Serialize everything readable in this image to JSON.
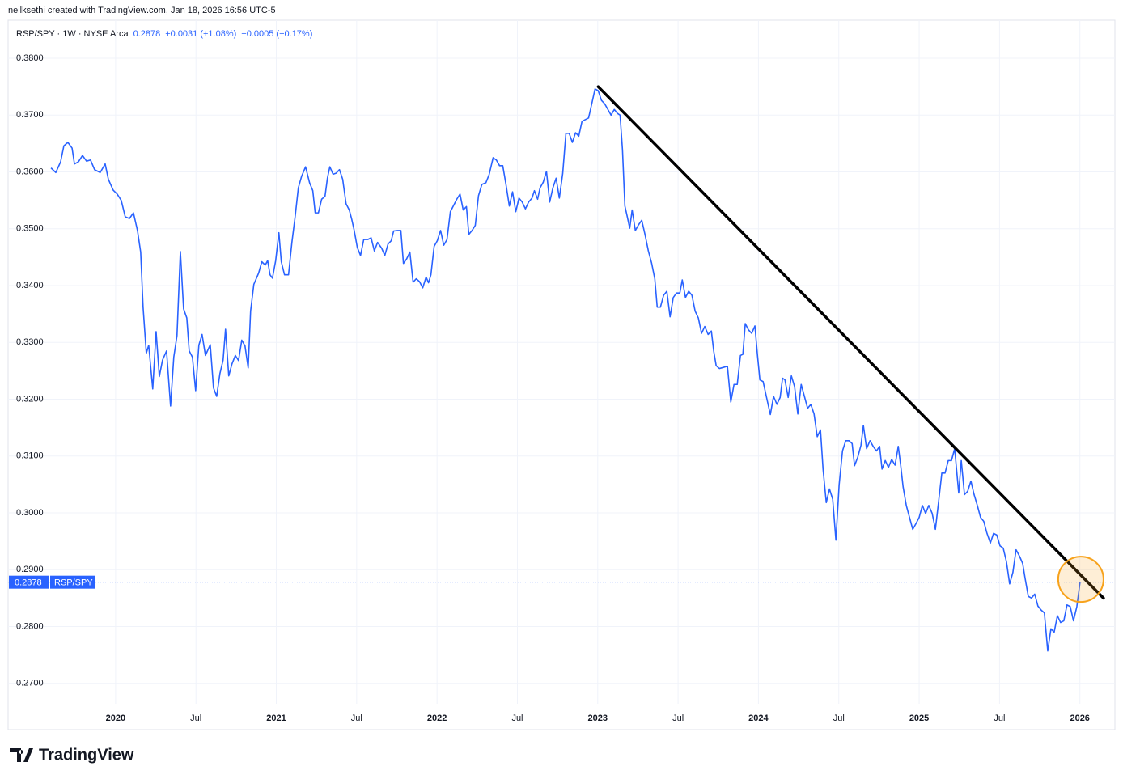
{
  "header": {
    "credit": "neilksethi created with TradingView.com, Jan 18, 2026 16:56 UTC-5"
  },
  "footer": {
    "brand": "TradingView"
  },
  "chart_data": {
    "type": "line",
    "legend": {
      "symbol": "RSP/SPY · 1W · NYSE Arca",
      "price": "0.2878",
      "change": "+0.0031 (+1.08%)",
      "change_extended": "−0.0005 (−0.17%)"
    },
    "x": [
      2019.598,
      2019.628,
      2019.658,
      2019.678,
      2019.703,
      2019.729,
      2019.744,
      2019.769,
      2019.794,
      2019.819,
      2019.844,
      2019.869,
      2019.904,
      2019.935,
      2019.955,
      2019.985,
      2020.01,
      2020.035,
      2020.06,
      2020.086,
      2020.111,
      2020.136,
      2020.156,
      2020.171,
      2020.191,
      2020.206,
      2020.231,
      2020.252,
      2020.272,
      2020.292,
      2020.317,
      2020.342,
      2020.362,
      2020.382,
      2020.403,
      2020.423,
      2020.443,
      2020.458,
      2020.478,
      2020.498,
      2020.518,
      2020.538,
      2020.559,
      2020.589,
      2020.609,
      2020.629,
      2020.649,
      2020.669,
      2020.684,
      2020.704,
      2020.724,
      2020.745,
      2020.765,
      2020.785,
      2020.805,
      2020.825,
      2020.84,
      2020.86,
      2020.89,
      2020.91,
      2020.931,
      2020.946,
      2020.961,
      2020.976,
      2020.996,
      2021.016,
      2021.031,
      2021.051,
      2021.076,
      2021.097,
      2021.117,
      2021.137,
      2021.157,
      2021.182,
      2021.207,
      2021.227,
      2021.242,
      2021.262,
      2021.282,
      2021.303,
      2021.318,
      2021.333,
      2021.353,
      2021.373,
      2021.393,
      2021.413,
      2021.434,
      2021.454,
      2021.469,
      2021.484,
      2021.504,
      2021.524,
      2021.544,
      2021.569,
      2021.59,
      2021.61,
      2021.63,
      2021.655,
      2021.675,
      2021.695,
      2021.715,
      2021.73,
      2021.755,
      2021.775,
      2021.791,
      2021.811,
      2021.831,
      2021.851,
      2021.871,
      2021.891,
      2021.911,
      2021.932,
      2021.947,
      2021.962,
      2021.982,
      2022.002,
      2022.022,
      2022.042,
      2022.062,
      2022.083,
      2022.103,
      2022.123,
      2022.143,
      2022.163,
      2022.183,
      2022.198,
      2022.218,
      2022.238,
      2022.258,
      2022.279,
      2022.304,
      2022.324,
      2022.349,
      2022.369,
      2022.389,
      2022.409,
      2022.429,
      2022.45,
      2022.47,
      2022.49,
      2022.51,
      2022.53,
      2022.55,
      2022.57,
      2022.591,
      2022.606,
      2022.626,
      2022.641,
      2022.661,
      2022.681,
      2022.701,
      2022.721,
      2022.741,
      2022.761,
      2022.782,
      2022.802,
      2022.822,
      2022.842,
      2022.862,
      2022.882,
      2022.902,
      2022.922,
      2022.943,
      2022.963,
      2022.983,
      2023.003,
      2023.023,
      2023.043,
      2023.063,
      2023.083,
      2023.103,
      2023.123,
      2023.139,
      2023.154,
      2023.169,
      2023.184,
      2023.199,
      2023.214,
      2023.234,
      2023.254,
      2023.274,
      2023.294,
      2023.315,
      2023.335,
      2023.355,
      2023.37,
      2023.39,
      2023.41,
      2023.43,
      2023.45,
      2023.47,
      2023.49,
      2023.511,
      2023.526,
      2023.546,
      2023.566,
      2023.586,
      2023.606,
      2023.626,
      2023.646,
      2023.666,
      2023.687,
      2023.707,
      2023.722,
      2023.737,
      2023.757,
      2023.782,
      2023.807,
      2023.828,
      2023.848,
      2023.868,
      2023.888,
      2023.903,
      2023.918,
      2023.938,
      2023.958,
      2023.978,
      2023.994,
      2024.009,
      2024.029,
      2024.049,
      2024.074,
      2024.094,
      2024.115,
      2024.135,
      2024.15,
      2024.165,
      2024.185,
      2024.205,
      2024.225,
      2024.245,
      2024.266,
      2024.286,
      2024.306,
      2024.326,
      2024.346,
      2024.366,
      2024.386,
      2024.402,
      2024.422,
      2024.442,
      2024.462,
      2024.482,
      2024.502,
      2024.523,
      2024.543,
      2024.563,
      2024.583,
      2024.598,
      2024.618,
      2024.638,
      2024.653,
      2024.673,
      2024.694,
      2024.714,
      2024.734,
      2024.754,
      2024.769,
      2024.789,
      2024.809,
      2024.829,
      2024.85,
      2024.87,
      2024.885,
      2024.9,
      2024.92,
      2024.94,
      2024.96,
      2024.98,
      2025.0,
      2025.02,
      2025.04,
      2025.06,
      2025.081,
      2025.101,
      2025.121,
      2025.141,
      2025.161,
      2025.181,
      2025.201,
      2025.221,
      2025.246,
      2025.262,
      2025.282,
      2025.302,
      2025.322,
      2025.342,
      2025.362,
      2025.382,
      2025.402,
      2025.422,
      2025.443,
      2025.463,
      2025.483,
      2025.503,
      2025.523,
      2025.543,
      2025.563,
      2025.583,
      2025.603,
      2025.624,
      2025.644,
      2025.659,
      2025.679,
      2025.699,
      2025.719,
      2025.739,
      2025.759,
      2025.779,
      2025.8,
      2025.82,
      2025.84,
      2025.86,
      2025.88,
      2025.9,
      2025.92,
      2025.94,
      2025.96,
      2025.981,
      2026.001
    ],
    "series": [
      {
        "name": "RSP/SPY",
        "color": "#2962ff",
        "values": [
          0.3607,
          0.3599,
          0.3618,
          0.3646,
          0.3652,
          0.3642,
          0.3614,
          0.3618,
          0.3629,
          0.3619,
          0.3621,
          0.3604,
          0.3599,
          0.3614,
          0.3587,
          0.3568,
          0.3561,
          0.355,
          0.3521,
          0.3518,
          0.3528,
          0.3497,
          0.3459,
          0.3362,
          0.3281,
          0.3295,
          0.3218,
          0.3319,
          0.324,
          0.3269,
          0.3285,
          0.3188,
          0.3274,
          0.3312,
          0.346,
          0.3359,
          0.3343,
          0.3285,
          0.3274,
          0.3215,
          0.3295,
          0.3314,
          0.3277,
          0.3296,
          0.322,
          0.3205,
          0.3245,
          0.3269,
          0.3323,
          0.3241,
          0.3262,
          0.3277,
          0.3268,
          0.3304,
          0.3294,
          0.3255,
          0.3355,
          0.3402,
          0.3422,
          0.3442,
          0.3436,
          0.3444,
          0.3419,
          0.3413,
          0.3444,
          0.3493,
          0.3442,
          0.3419,
          0.3419,
          0.3476,
          0.3521,
          0.3572,
          0.3592,
          0.3609,
          0.3581,
          0.3567,
          0.3528,
          0.3528,
          0.3552,
          0.3557,
          0.3589,
          0.3609,
          0.3596,
          0.3598,
          0.3604,
          0.3587,
          0.3544,
          0.3533,
          0.3517,
          0.3498,
          0.3467,
          0.3453,
          0.3481,
          0.3481,
          0.3484,
          0.3461,
          0.3476,
          0.3466,
          0.3453,
          0.3473,
          0.3479,
          0.3496,
          0.3497,
          0.3497,
          0.3439,
          0.3447,
          0.3459,
          0.3406,
          0.3412,
          0.3407,
          0.3396,
          0.3415,
          0.3405,
          0.3419,
          0.3469,
          0.3479,
          0.3497,
          0.3471,
          0.3481,
          0.353,
          0.3541,
          0.3552,
          0.3561,
          0.3533,
          0.3539,
          0.349,
          0.3497,
          0.3506,
          0.3558,
          0.3578,
          0.3581,
          0.3595,
          0.3625,
          0.3621,
          0.3611,
          0.3611,
          0.3578,
          0.354,
          0.3565,
          0.353,
          0.3554,
          0.3547,
          0.3535,
          0.3547,
          0.3554,
          0.3567,
          0.3552,
          0.3572,
          0.3582,
          0.3601,
          0.3547,
          0.3572,
          0.3589,
          0.3554,
          0.3597,
          0.3668,
          0.3668,
          0.3652,
          0.3669,
          0.3663,
          0.3689,
          0.3692,
          0.3695,
          0.372,
          0.3746,
          0.3743,
          0.3726,
          0.372,
          0.371,
          0.37,
          0.371,
          0.3703,
          0.37,
          0.3639,
          0.354,
          0.3521,
          0.3501,
          0.3533,
          0.3497,
          0.3507,
          0.3515,
          0.349,
          0.3461,
          0.344,
          0.3412,
          0.3362,
          0.3362,
          0.3383,
          0.339,
          0.3345,
          0.3379,
          0.3387,
          0.3387,
          0.341,
          0.3379,
          0.339,
          0.3383,
          0.3355,
          0.3343,
          0.3316,
          0.3328,
          0.3314,
          0.332,
          0.3284,
          0.3259,
          0.3254,
          0.3256,
          0.3258,
          0.3195,
          0.3226,
          0.3226,
          0.3277,
          0.3279,
          0.3333,
          0.3322,
          0.3316,
          0.3329,
          0.3277,
          0.3234,
          0.3231,
          0.3205,
          0.3173,
          0.3205,
          0.3191,
          0.3203,
          0.3237,
          0.3234,
          0.3203,
          0.3241,
          0.3222,
          0.3174,
          0.3226,
          0.3205,
          0.3184,
          0.3191,
          0.3174,
          0.3134,
          0.3146,
          0.3077,
          0.3018,
          0.3042,
          0.3024,
          0.2952,
          0.3049,
          0.3109,
          0.3127,
          0.3127,
          0.3122,
          0.3083,
          0.3098,
          0.3119,
          0.3154,
          0.3113,
          0.3127,
          0.3117,
          0.3109,
          0.3117,
          0.3077,
          0.3092,
          0.308,
          0.3094,
          0.3084,
          0.3117,
          0.3084,
          0.3046,
          0.3013,
          0.2992,
          0.2971,
          0.2981,
          0.2992,
          0.3013,
          0.2999,
          0.3013,
          0.2999,
          0.2971,
          0.302,
          0.307,
          0.307,
          0.3092,
          0.3092,
          0.3113,
          0.3035,
          0.3092,
          0.3032,
          0.3038,
          0.3056,
          0.3032,
          0.3013,
          0.2992,
          0.2985,
          0.2964,
          0.2947,
          0.2964,
          0.2961,
          0.2942,
          0.2938,
          0.2914,
          0.2875,
          0.2895,
          0.2935,
          0.2924,
          0.2911,
          0.2885,
          0.2853,
          0.285,
          0.2857,
          0.2836,
          0.2829,
          0.2824,
          0.2757,
          0.2796,
          0.279,
          0.2819,
          0.2807,
          0.281,
          0.2838,
          0.2835,
          0.281,
          0.2835,
          0.2878
        ]
      }
    ],
    "xlim": [
      2019.331,
      2026.218
    ],
    "ylim": [
      0.2664,
      0.3867
    ],
    "xticks": [
      {
        "value": 2020,
        "label": "2020"
      },
      {
        "value": 2020.5,
        "label": "Jul"
      },
      {
        "value": 2021,
        "label": "2021"
      },
      {
        "value": 2021.5,
        "label": "Jul"
      },
      {
        "value": 2022,
        "label": "2022"
      },
      {
        "value": 2022.5,
        "label": "Jul"
      },
      {
        "value": 2023,
        "label": "2023"
      },
      {
        "value": 2023.5,
        "label": "Jul"
      },
      {
        "value": 2024,
        "label": "2024"
      },
      {
        "value": 2024.5,
        "label": "Jul"
      },
      {
        "value": 2025,
        "label": "2025"
      },
      {
        "value": 2025.5,
        "label": "Jul"
      },
      {
        "value": 2026,
        "label": "2026"
      }
    ],
    "yticks": [
      {
        "value": 0.27,
        "label": "0.2700"
      },
      {
        "value": 0.28,
        "label": "0.2800"
      },
      {
        "value": 0.29,
        "label": "0.2900"
      },
      {
        "value": 0.3,
        "label": "0.3000"
      },
      {
        "value": 0.31,
        "label": "0.3100"
      },
      {
        "value": 0.32,
        "label": "0.3200"
      },
      {
        "value": 0.33,
        "label": "0.3300"
      },
      {
        "value": 0.34,
        "label": "0.3400"
      },
      {
        "value": 0.35,
        "label": "0.3500"
      },
      {
        "value": 0.36,
        "label": "0.3600"
      },
      {
        "value": 0.37,
        "label": "0.3700"
      },
      {
        "value": 0.38,
        "label": "0.3800"
      }
    ],
    "grid": true,
    "annotations": {
      "trendline": {
        "color": "#000000",
        "x": [
          2023.003,
          2026.147
        ],
        "y": [
          0.375,
          0.285
        ]
      },
      "highlight": {
        "color": "#f7a21b",
        "x": 2026.006,
        "y": 0.2883
      }
    }
  }
}
